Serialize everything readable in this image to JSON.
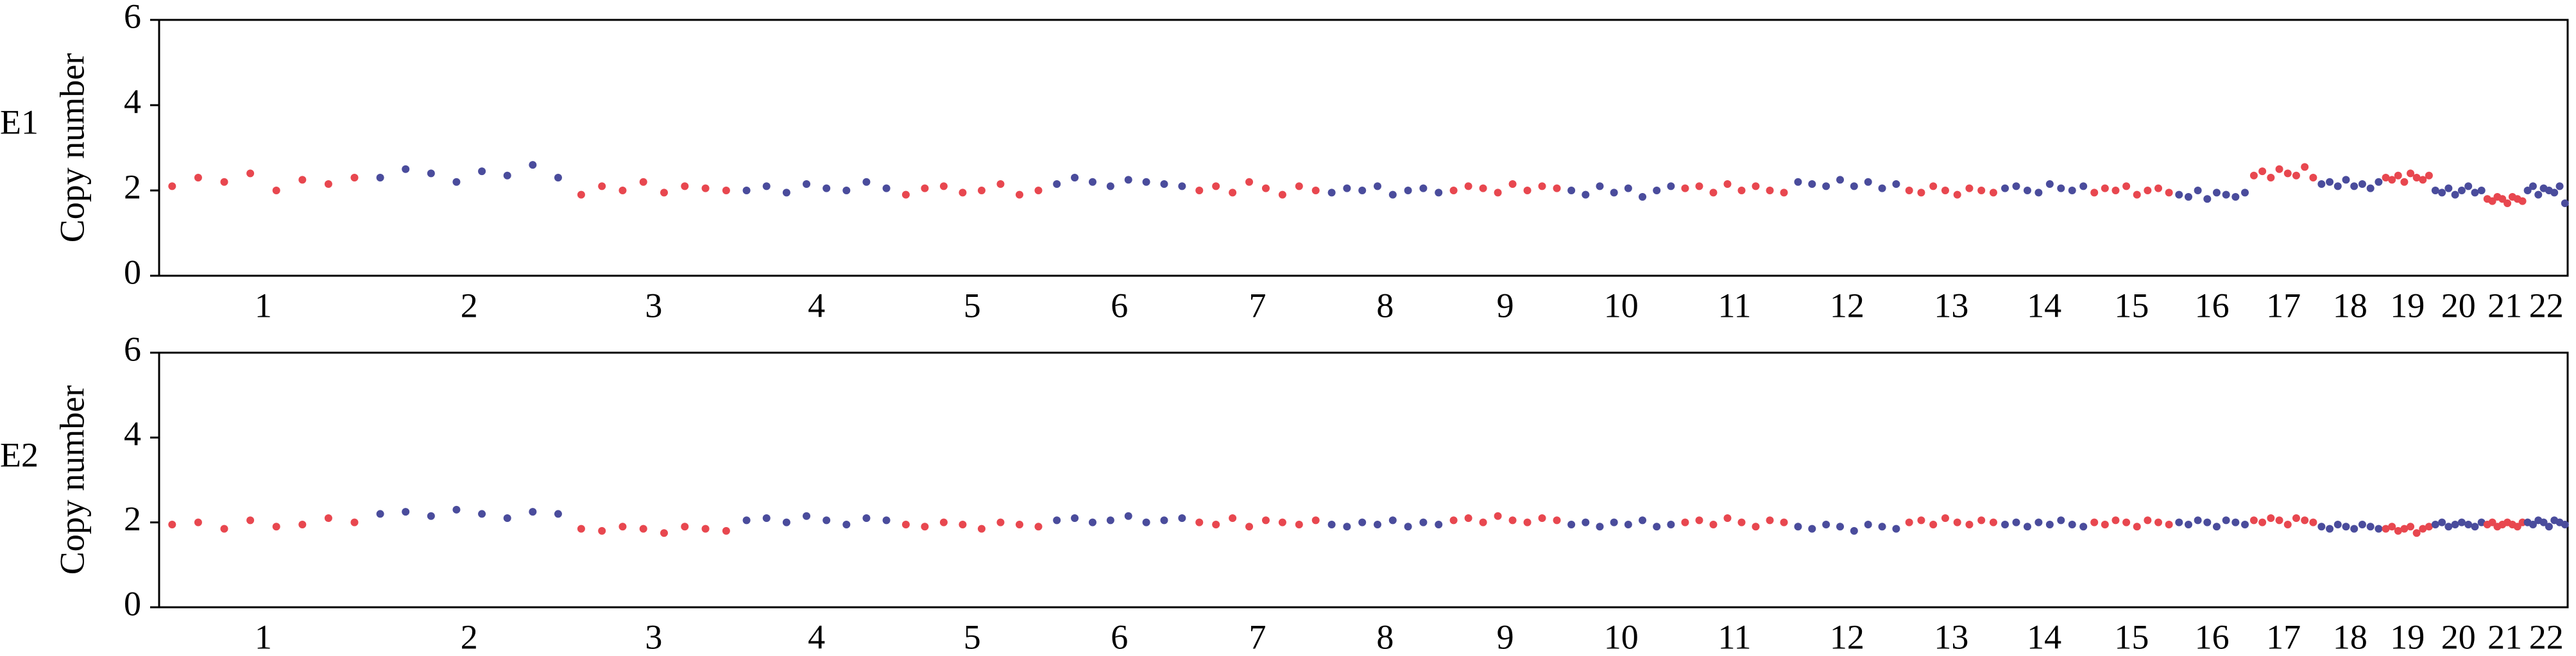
{
  "chart_data": [
    {
      "type": "scatter",
      "panel_label": "E1",
      "y_label": "Copy number",
      "categories": [
        "1",
        "2",
        "3",
        "4",
        "5",
        "6",
        "7",
        "8",
        "9",
        "10",
        "11",
        "12",
        "13",
        "14",
        "15",
        "16",
        "17",
        "18",
        "19",
        "20",
        "21",
        "22"
      ],
      "colors": [
        "#e8474f",
        "#4a4c9c"
      ],
      "ylim": [
        0,
        6
      ],
      "yticks": [
        0,
        2,
        4,
        6
      ],
      "values": [
        [
          2.1,
          2.3,
          2.2,
          2.4,
          2.0,
          2.25,
          2.15,
          2.3
        ],
        [
          2.3,
          2.5,
          2.4,
          2.2,
          2.45,
          2.35,
          2.6,
          2.3
        ],
        [
          1.9,
          2.1,
          2.0,
          2.2,
          1.95,
          2.1,
          2.05,
          2.0
        ],
        [
          2.0,
          2.1,
          1.95,
          2.15,
          2.05,
          2.0,
          2.2,
          2.05
        ],
        [
          1.9,
          2.05,
          2.1,
          1.95,
          2.0,
          2.15,
          1.9,
          2.0
        ],
        [
          2.15,
          2.3,
          2.2,
          2.1,
          2.25,
          2.2,
          2.15,
          2.1
        ],
        [
          2.0,
          2.1,
          1.95,
          2.2,
          2.05,
          1.9,
          2.1,
          2.0
        ],
        [
          1.95,
          2.05,
          2.0,
          2.1,
          1.9,
          2.0,
          2.05,
          1.95
        ],
        [
          2.0,
          2.1,
          2.05,
          1.95,
          2.15,
          2.0,
          2.1,
          2.05
        ],
        [
          2.0,
          1.9,
          2.1,
          1.95,
          2.05,
          1.85,
          2.0,
          2.1
        ],
        [
          2.05,
          2.1,
          1.95,
          2.15,
          2.0,
          2.1,
          2.0,
          1.95
        ],
        [
          2.2,
          2.15,
          2.1,
          2.25,
          2.1,
          2.2,
          2.05,
          2.15
        ],
        [
          2.0,
          1.95,
          2.1,
          2.0,
          1.9,
          2.05,
          2.0,
          1.95
        ],
        [
          2.05,
          2.1,
          2.0,
          1.95,
          2.15,
          2.05,
          2.0,
          2.1
        ],
        [
          1.95,
          2.05,
          2.0,
          2.1,
          1.9,
          2.0,
          2.05,
          1.95
        ],
        [
          1.9,
          1.85,
          2.0,
          1.8,
          1.95,
          1.9,
          1.85,
          1.95
        ],
        [
          2.35,
          2.45,
          2.3,
          2.5,
          2.4,
          2.35,
          2.55,
          2.3
        ],
        [
          2.15,
          2.2,
          2.1,
          2.25,
          2.1,
          2.15,
          2.05,
          2.2
        ],
        [
          2.3,
          2.25,
          2.35,
          2.2,
          2.4,
          2.3,
          2.25,
          2.35
        ],
        [
          2.0,
          1.95,
          2.05,
          1.9,
          2.0,
          2.1,
          1.95,
          2.0
        ],
        [
          1.8,
          1.75,
          1.85,
          1.8,
          1.7,
          1.85,
          1.8,
          1.75
        ],
        [
          2.0,
          2.1,
          1.9,
          2.05,
          2.0,
          1.95,
          2.1,
          1.7
        ]
      ]
    },
    {
      "type": "scatter",
      "panel_label": "E2",
      "y_label": "Copy number",
      "categories": [
        "1",
        "2",
        "3",
        "4",
        "5",
        "6",
        "7",
        "8",
        "9",
        "10",
        "11",
        "12",
        "13",
        "14",
        "15",
        "16",
        "17",
        "18",
        "19",
        "20",
        "21",
        "22"
      ],
      "colors": [
        "#e8474f",
        "#4a4c9c"
      ],
      "ylim": [
        0,
        6
      ],
      "yticks": [
        0,
        2,
        4,
        6
      ],
      "values": [
        [
          1.95,
          2.0,
          1.85,
          2.05,
          1.9,
          1.95,
          2.1,
          2.0
        ],
        [
          2.2,
          2.25,
          2.15,
          2.3,
          2.2,
          2.1,
          2.25,
          2.2
        ],
        [
          1.85,
          1.8,
          1.9,
          1.85,
          1.75,
          1.9,
          1.85,
          1.8
        ],
        [
          2.05,
          2.1,
          2.0,
          2.15,
          2.05,
          1.95,
          2.1,
          2.05
        ],
        [
          1.95,
          1.9,
          2.0,
          1.95,
          1.85,
          2.0,
          1.95,
          1.9
        ],
        [
          2.05,
          2.1,
          2.0,
          2.05,
          2.15,
          2.0,
          2.05,
          2.1
        ],
        [
          2.0,
          1.95,
          2.1,
          1.9,
          2.05,
          2.0,
          1.95,
          2.05
        ],
        [
          1.95,
          1.9,
          2.0,
          1.95,
          2.05,
          1.9,
          2.0,
          1.95
        ],
        [
          2.05,
          2.1,
          2.0,
          2.15,
          2.05,
          2.0,
          2.1,
          2.05
        ],
        [
          1.95,
          2.0,
          1.9,
          2.0,
          1.95,
          2.05,
          1.9,
          1.95
        ],
        [
          2.0,
          2.05,
          1.95,
          2.1,
          2.0,
          1.9,
          2.05,
          2.0
        ],
        [
          1.9,
          1.85,
          1.95,
          1.9,
          1.8,
          1.95,
          1.9,
          1.85
        ],
        [
          2.0,
          2.05,
          1.95,
          2.1,
          2.0,
          1.95,
          2.05,
          2.0
        ],
        [
          1.95,
          2.0,
          1.9,
          2.0,
          1.95,
          2.05,
          1.95,
          1.9
        ],
        [
          2.0,
          1.95,
          2.05,
          2.0,
          1.9,
          2.05,
          2.0,
          1.95
        ],
        [
          2.0,
          1.95,
          2.05,
          2.0,
          1.9,
          2.05,
          2.0,
          1.95
        ],
        [
          2.05,
          2.0,
          2.1,
          2.05,
          1.95,
          2.1,
          2.05,
          2.0
        ],
        [
          1.9,
          1.85,
          1.95,
          1.9,
          1.85,
          1.95,
          1.9,
          1.85
        ],
        [
          1.85,
          1.9,
          1.8,
          1.85,
          1.9,
          1.75,
          1.85,
          1.9
        ],
        [
          1.95,
          2.0,
          1.9,
          1.95,
          2.0,
          1.95,
          1.9,
          2.0
        ],
        [
          1.95,
          2.0,
          1.9,
          1.95,
          2.0,
          1.95,
          1.9,
          2.0
        ],
        [
          2.0,
          1.95,
          2.05,
          2.0,
          1.9,
          2.05,
          2.0,
          1.95
        ]
      ]
    }
  ]
}
